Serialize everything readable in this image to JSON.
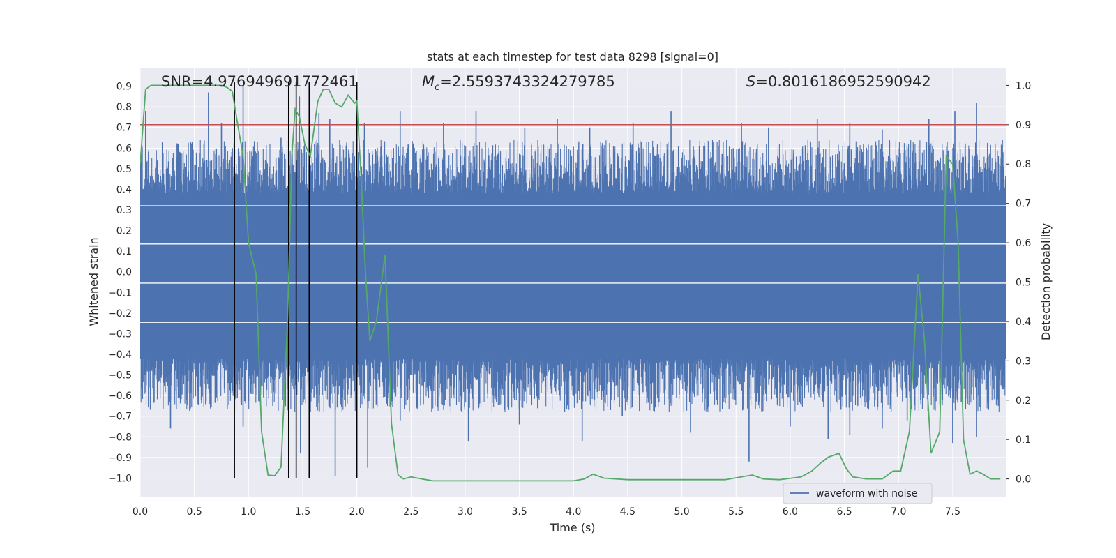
{
  "chart_data": {
    "type": "line",
    "title": "stats at each timestep for test data 8298 [signal=0]",
    "xlabel": "Time (s)",
    "ylabel": "Whitened strain",
    "y2label": "Detection probability",
    "xlim": [
      0.0,
      7.99
    ],
    "ylim": [
      -1.09,
      0.99
    ],
    "y2lim": [
      -0.045,
      1.045
    ],
    "x_ticks": [
      "0.0",
      "0.5",
      "1.0",
      "1.5",
      "2.0",
      "2.5",
      "3.0",
      "3.5",
      "4.0",
      "4.5",
      "5.0",
      "5.5",
      "6.0",
      "6.5",
      "7.0",
      "7.5"
    ],
    "y_ticks": [
      "0.9",
      "0.8",
      "0.7",
      "0.6",
      "0.5",
      "0.4",
      "0.3",
      "0.2",
      "0.1",
      "0.0",
      "−0.1",
      "−0.2",
      "−0.3",
      "−0.4",
      "−0.5",
      "−0.6",
      "−0.7",
      "−0.8",
      "−0.9",
      "−1.0"
    ],
    "y2_ticks": [
      "1.0",
      "0.9",
      "0.8",
      "0.7",
      "0.6",
      "0.5",
      "0.4",
      "0.3",
      "0.2",
      "0.1",
      "0.0"
    ],
    "annotations": {
      "snr": "SNR=4.976949691772461",
      "mc_symbol": "M",
      "mc_sub": "c",
      "mc_value": "=2.5593743324279785",
      "s_symbol": "S",
      "s_value": "=0.8016186952590942"
    },
    "threshold": {
      "value": 0.9,
      "axis": "right",
      "color": "#c44e52"
    },
    "event_lines_x": [
      0.87,
      1.37,
      1.44,
      1.56,
      2.0
    ],
    "background_bands_y": [
      0.32,
      0.135,
      -0.055,
      -0.245
    ],
    "series": [
      {
        "name": "waveform with noise",
        "axis": "left",
        "style": "noise",
        "color": "#4c72b0",
        "core_band": [
          -0.42,
          0.38
        ],
        "x_range": [
          0.0,
          7.99
        ],
        "spikes_up": [
          [
            0.05,
            0.78
          ],
          [
            0.35,
            0.62
          ],
          [
            0.63,
            0.87
          ],
          [
            0.75,
            0.72
          ],
          [
            0.95,
            0.9
          ],
          [
            1.3,
            0.65
          ],
          [
            1.47,
            0.85
          ],
          [
            1.65,
            0.77
          ],
          [
            1.75,
            0.74
          ],
          [
            2.07,
            0.72
          ],
          [
            2.4,
            0.78
          ],
          [
            2.8,
            0.72
          ],
          [
            3.1,
            0.78
          ],
          [
            3.55,
            0.7
          ],
          [
            3.85,
            0.74
          ],
          [
            4.15,
            0.7
          ],
          [
            4.55,
            0.72
          ],
          [
            4.9,
            0.78
          ],
          [
            5.55,
            0.72
          ],
          [
            5.8,
            0.7
          ],
          [
            6.25,
            0.74
          ],
          [
            6.55,
            0.72
          ],
          [
            6.85,
            0.69
          ],
          [
            7.28,
            0.74
          ],
          [
            7.52,
            0.78
          ],
          [
            7.72,
            0.82
          ]
        ],
        "spikes_down": [
          [
            0.28,
            -0.76
          ],
          [
            0.95,
            -0.75
          ],
          [
            1.48,
            -0.88
          ],
          [
            1.8,
            -0.99
          ],
          [
            2.1,
            -0.95
          ],
          [
            2.4,
            -0.72
          ],
          [
            3.03,
            -0.82
          ],
          [
            3.5,
            -0.74
          ],
          [
            4.08,
            -0.82
          ],
          [
            4.45,
            -0.7
          ],
          [
            5.08,
            -0.78
          ],
          [
            5.62,
            -0.92
          ],
          [
            6.0,
            -0.75
          ],
          [
            6.35,
            -0.81
          ],
          [
            6.55,
            -0.79
          ],
          [
            6.85,
            -0.76
          ],
          [
            7.08,
            -0.72
          ],
          [
            7.5,
            -0.83
          ],
          [
            7.72,
            -0.8
          ]
        ]
      },
      {
        "name": "",
        "axis": "right",
        "color": "#55a868",
        "points": [
          [
            0.0,
            0.8
          ],
          [
            0.05,
            0.99
          ],
          [
            0.1,
            1.0
          ],
          [
            0.2,
            1.0
          ],
          [
            0.4,
            1.0
          ],
          [
            0.6,
            1.0
          ],
          [
            0.75,
            1.0
          ],
          [
            0.8,
            0.995
          ],
          [
            0.85,
            0.985
          ],
          [
            0.9,
            0.9
          ],
          [
            0.95,
            0.82
          ],
          [
            1.0,
            0.6
          ],
          [
            1.07,
            0.52
          ],
          [
            1.12,
            0.12
          ],
          [
            1.18,
            0.01
          ],
          [
            1.24,
            0.008
          ],
          [
            1.3,
            0.03
          ],
          [
            1.36,
            0.4
          ],
          [
            1.4,
            0.82
          ],
          [
            1.43,
            0.94
          ],
          [
            1.47,
            0.92
          ],
          [
            1.52,
            0.85
          ],
          [
            1.57,
            0.82
          ],
          [
            1.6,
            0.88
          ],
          [
            1.64,
            0.96
          ],
          [
            1.69,
            0.99
          ],
          [
            1.74,
            0.99
          ],
          [
            1.8,
            0.955
          ],
          [
            1.86,
            0.945
          ],
          [
            1.92,
            0.975
          ],
          [
            1.98,
            0.955
          ],
          [
            2.0,
            0.96
          ],
          [
            2.04,
            0.76
          ],
          [
            2.08,
            0.52
          ],
          [
            2.12,
            0.35
          ],
          [
            2.18,
            0.4
          ],
          [
            2.26,
            0.57
          ],
          [
            2.32,
            0.14
          ],
          [
            2.38,
            0.01
          ],
          [
            2.43,
            0.0
          ],
          [
            2.5,
            0.005
          ],
          [
            2.6,
            0.0
          ],
          [
            2.7,
            -0.005
          ],
          [
            2.9,
            -0.005
          ],
          [
            3.2,
            -0.005
          ],
          [
            3.6,
            -0.005
          ],
          [
            4.0,
            -0.005
          ],
          [
            4.1,
            0.0
          ],
          [
            4.18,
            0.012
          ],
          [
            4.28,
            0.002
          ],
          [
            4.5,
            -0.002
          ],
          [
            5.0,
            -0.002
          ],
          [
            5.4,
            -0.002
          ],
          [
            5.65,
            0.01
          ],
          [
            5.75,
            0.0
          ],
          [
            5.9,
            -0.002
          ],
          [
            6.1,
            0.005
          ],
          [
            6.2,
            0.02
          ],
          [
            6.28,
            0.04
          ],
          [
            6.35,
            0.055
          ],
          [
            6.45,
            0.065
          ],
          [
            6.52,
            0.025
          ],
          [
            6.58,
            0.005
          ],
          [
            6.7,
            0.0
          ],
          [
            6.85,
            0.0
          ],
          [
            6.95,
            0.02
          ],
          [
            7.02,
            0.02
          ],
          [
            7.1,
            0.12
          ],
          [
            7.18,
            0.52
          ],
          [
            7.24,
            0.35
          ],
          [
            7.3,
            0.065
          ],
          [
            7.38,
            0.12
          ],
          [
            7.44,
            0.82
          ],
          [
            7.5,
            0.8
          ],
          [
            7.55,
            0.6
          ],
          [
            7.6,
            0.1
          ],
          [
            7.66,
            0.012
          ],
          [
            7.72,
            0.02
          ],
          [
            7.78,
            0.012
          ],
          [
            7.85,
            0.0
          ],
          [
            7.94,
            0.0
          ]
        ]
      }
    ],
    "legend": {
      "position": "lower-right",
      "entries": [
        "waveform with noise"
      ]
    },
    "grid": true
  }
}
